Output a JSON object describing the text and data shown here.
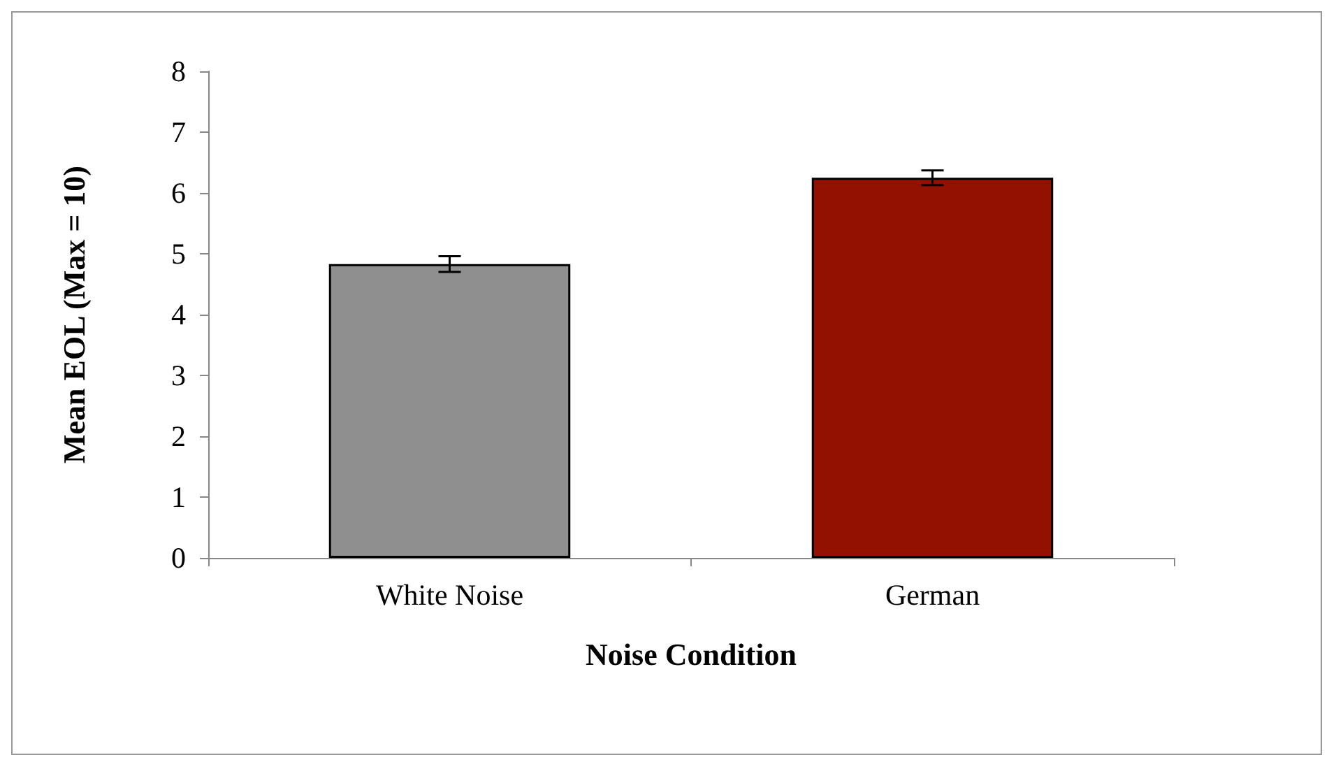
{
  "chart_data": {
    "type": "bar",
    "xlabel": "Noise Condition",
    "ylabel": "Mean EOL (Max = 10)",
    "categories": [
      "White Noise",
      "German"
    ],
    "values": [
      4.83,
      6.25
    ],
    "colors": [
      "#8f8f8f",
      "#921100"
    ],
    "errors": [
      0.13,
      0.12
    ],
    "ylim": [
      0,
      8
    ],
    "yticks": [
      0,
      1,
      2,
      3,
      4,
      5,
      6,
      7,
      8
    ],
    "grid": false
  }
}
